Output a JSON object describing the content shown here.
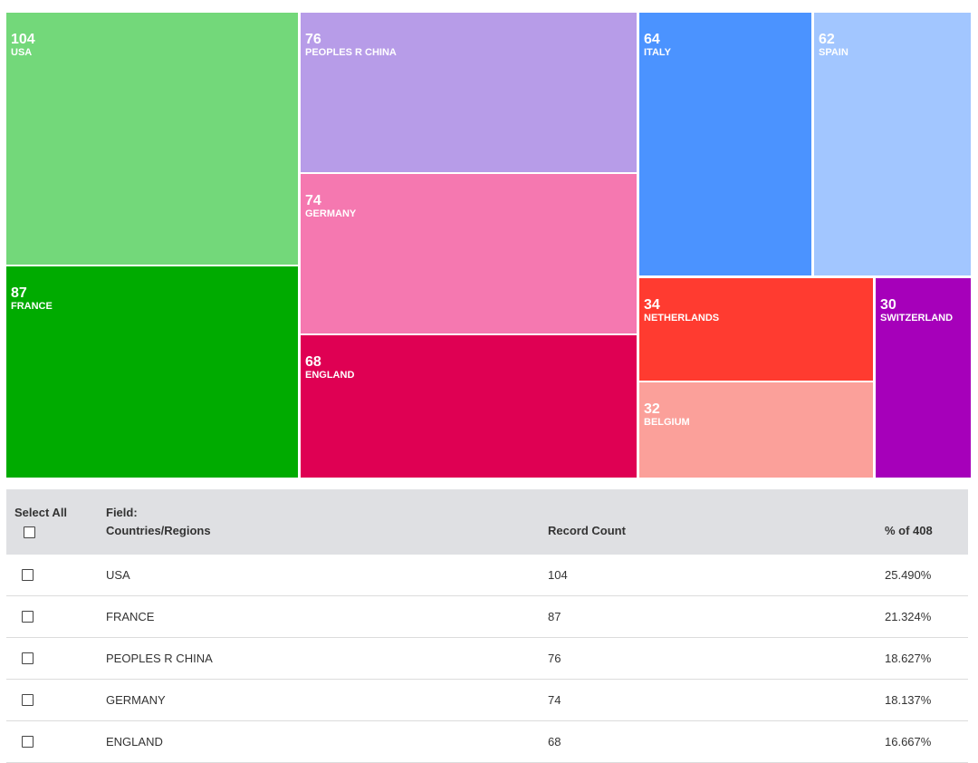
{
  "chart_data": {
    "type": "treemap",
    "items": [
      {
        "label": "USA",
        "value": 104,
        "color": "#73d87a"
      },
      {
        "label": "FRANCE",
        "value": 87,
        "color": "#00ab00"
      },
      {
        "label": "PEOPLES R CHINA",
        "value": 76,
        "color": "#b79ce8"
      },
      {
        "label": "GERMANY",
        "value": 74,
        "color": "#f578b0"
      },
      {
        "label": "ENGLAND",
        "value": 68,
        "color": "#df0053"
      },
      {
        "label": "ITALY",
        "value": 64,
        "color": "#4b93ff"
      },
      {
        "label": "SPAIN",
        "value": 62,
        "color": "#a2c6ff"
      },
      {
        "label": "NETHERLANDS",
        "value": 34,
        "color": "#ff3b30"
      },
      {
        "label": "BELGIUM",
        "value": 32,
        "color": "#fba09a"
      },
      {
        "label": "SWITZERLAND",
        "value": 30,
        "color": "#a600ba"
      }
    ]
  },
  "table": {
    "select_all_label": "Select All",
    "field_label": "Field:",
    "field_name": "Countries/Regions",
    "count_header": "Record Count",
    "pct_header": "% of 408",
    "rows": [
      {
        "country": "USA",
        "count": "104",
        "pct": "25.490%"
      },
      {
        "country": "FRANCE",
        "count": "87",
        "pct": "21.324%"
      },
      {
        "country": "PEOPLES R CHINA",
        "count": "76",
        "pct": "18.627%"
      },
      {
        "country": "GERMANY",
        "count": "74",
        "pct": "18.137%"
      },
      {
        "country": "ENGLAND",
        "count": "68",
        "pct": "16.667%"
      }
    ]
  }
}
